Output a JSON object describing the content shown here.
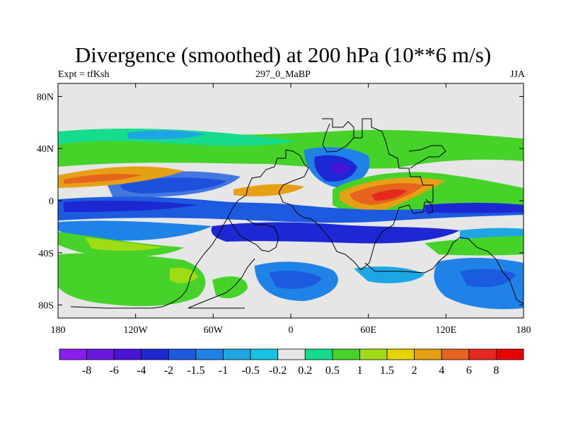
{
  "title": "Divergence (smoothed) at 200 hPa (10**6 m/s)",
  "subtitle_left": "Expt = tfKsh",
  "subtitle_center": "297_0_MaBP",
  "subtitle_right": "JJA",
  "lat_ticks": [
    {
      "label": "80N",
      "value": 80
    },
    {
      "label": "40N",
      "value": 40
    },
    {
      "label": "0",
      "value": 0
    },
    {
      "label": "40S",
      "value": -40
    },
    {
      "label": "80S",
      "value": -80
    }
  ],
  "lon_ticks": [
    {
      "label": "180",
      "value": -180
    },
    {
      "label": "120W",
      "value": -120
    },
    {
      "label": "60W",
      "value": -60
    },
    {
      "label": "0",
      "value": 0
    },
    {
      "label": "60E",
      "value": 60
    },
    {
      "label": "120E",
      "value": 120
    },
    {
      "label": "180",
      "value": 180
    }
  ],
  "colorbar": {
    "labels": [
      "-8",
      "-6",
      "-4",
      "-2",
      "-1.5",
      "-1",
      "-0.5",
      "-0.2",
      "0.2",
      "0.5",
      "1",
      "1.5",
      "2",
      "4",
      "6",
      "8"
    ],
    "colors": [
      "#8a1ef0",
      "#6a17e0",
      "#4a14d8",
      "#1e28d2",
      "#1c5ae0",
      "#1e82e6",
      "#1ea6e4",
      "#18c2e2",
      "#e6e6e6",
      "#14dc8c",
      "#46d228",
      "#a0dc14",
      "#e6d200",
      "#e6a014",
      "#e6641e",
      "#e6281e",
      "#e60000"
    ]
  },
  "chart_data": {
    "type": "map-filled-contour",
    "title": "Divergence (smoothed) at 200 hPa (10**6 m/s)",
    "experiment": "tfKsh",
    "case": "297_0_MaBP",
    "season": "JJA",
    "lon_range": [
      -180,
      180
    ],
    "lat_range": [
      -90,
      90
    ],
    "levels": [
      -8,
      -6,
      -4,
      -2,
      -1.5,
      -1,
      -0.5,
      -0.2,
      0.2,
      0.5,
      1,
      1.5,
      2,
      4,
      6,
      8
    ],
    "features": [
      {
        "desc": "strong divergence over Arabia/North Africa",
        "lon": 65,
        "lat": 5,
        "value": 6
      },
      {
        "desc": "divergence band N Pacific",
        "lon": -150,
        "lat": 15,
        "value": 4
      },
      {
        "desc": "strong convergence Tibet/central Asia",
        "lon": 40,
        "lat": 25,
        "value": -4
      },
      {
        "desc": "convergence band Southern Ocean subtropics",
        "lon": 60,
        "lat": -25,
        "value": -4
      },
      {
        "desc": "convergence near equator Pacific",
        "lon": 140,
        "lat": -5,
        "value": -2
      },
      {
        "desc": "convergence SE Pacific",
        "lon": 120,
        "lat": -55,
        "value": -1.5
      }
    ]
  }
}
